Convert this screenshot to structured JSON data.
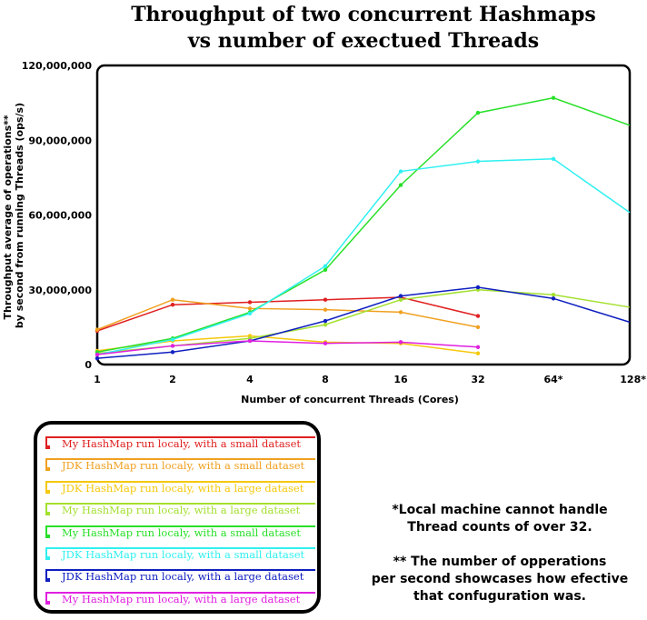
{
  "chart_data": {
    "type": "line",
    "title": [
      "Throughput of two concurrent Hashmaps",
      "vs number of exectued Threads"
    ],
    "xlabel": "Number of concurrent Threads (Cores)",
    "ylabel": [
      "Throughput average of operations**",
      "by second from running Threads (ops/s)"
    ],
    "categories": [
      "1",
      "2",
      "4",
      "8",
      "16",
      "32",
      "64*",
      "128*"
    ],
    "ylim": [
      0,
      120000000
    ],
    "yticks": [
      0,
      30000000,
      60000000,
      90000000,
      120000000
    ],
    "ytick_labels": [
      "0",
      "30,000,000",
      "60,000,000",
      "90,000,000",
      "120,000,000"
    ],
    "grid": false,
    "legend_position": "bottom-left",
    "series": [
      {
        "name": "My HashMap run localy, with a small dataset",
        "color": "#e02020",
        "values": [
          13500000,
          24000000,
          25000000,
          26000000,
          27000000,
          19500000,
          null,
          null
        ]
      },
      {
        "name": "JDK HashMap run localy, with a small dataset",
        "color": "#f0a020",
        "values": [
          14000000,
          26000000,
          22500000,
          22000000,
          21000000,
          15000000,
          null,
          null
        ]
      },
      {
        "name": "JDK HashMap run localy, with a large dataset",
        "color": "#f5c80a",
        "values": [
          5500000,
          9500000,
          11500000,
          9000000,
          8500000,
          4500000,
          null,
          null
        ]
      },
      {
        "name": "My HashMap run localy, with a large dataset",
        "color": "#a4e030",
        "values": [
          4500000,
          7500000,
          10500000,
          16000000,
          26000000,
          30000000,
          28000000,
          23000000
        ]
      },
      {
        "name": "My HashMap run localy, with a small dataset",
        "color": "#28e028",
        "values": [
          5000000,
          10500000,
          21000000,
          38000000,
          72000000,
          101000000,
          107000000,
          96000000
        ]
      },
      {
        "name": "JDK HashMap run localy, with a small dataset",
        "color": "#30f0f0",
        "values": [
          4000000,
          10000000,
          20500000,
          39500000,
          77500000,
          81500000,
          82500000,
          61000000
        ]
      },
      {
        "name": "JDK HashMap run localy, with a large dataset",
        "color": "#1020c0",
        "values": [
          2500000,
          5000000,
          9500000,
          17500000,
          27500000,
          31000000,
          26500000,
          17000000
        ]
      },
      {
        "name": "My HashMap run localy, with a large dataset",
        "color": "#e020e0",
        "values": [
          4000000,
          7500000,
          9500000,
          8500000,
          9000000,
          7000000,
          null,
          null
        ]
      }
    ]
  },
  "footnotes": {
    "note1": [
      "*Local machine cannot handle",
      "Thread counts of over 32."
    ],
    "note2": [
      "** The number of opperations",
      "per second showcases how efective",
      "that confuguration was."
    ]
  }
}
